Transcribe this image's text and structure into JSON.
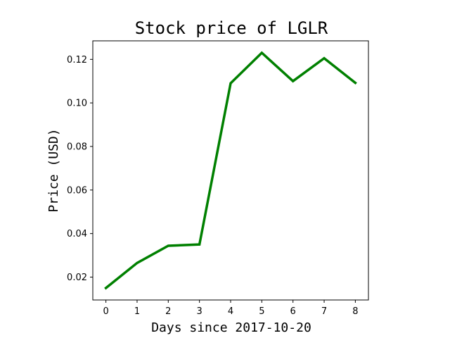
{
  "chart_data": {
    "type": "line",
    "title": "Stock price of LGLR",
    "xlabel": "Days since 2017-10-20",
    "ylabel": "Price (USD)",
    "x": [
      0,
      1,
      2,
      3,
      4,
      5,
      6,
      7,
      8
    ],
    "series": [
      {
        "values": [
          0.015,
          0.0265,
          0.0344,
          0.035,
          0.109,
          0.123,
          0.11,
          0.1205,
          0.1092
        ]
      }
    ],
    "xlim": [
      -0.42,
      8.42
    ],
    "ylim": [
      0.0095,
      0.1285
    ],
    "xticks": [
      0,
      1,
      2,
      3,
      4,
      5,
      6,
      7,
      8
    ],
    "xtick_labels": [
      "0",
      "1",
      "2",
      "3",
      "4",
      "5",
      "6",
      "7",
      "8"
    ],
    "yticks": [
      0.02,
      0.04,
      0.06,
      0.08,
      0.1,
      0.12
    ],
    "ytick_labels": [
      "0.02",
      "0.04",
      "0.06",
      "0.08",
      "0.10",
      "0.12"
    ],
    "grid": false,
    "legend": "none",
    "line_color": "#008000"
  }
}
